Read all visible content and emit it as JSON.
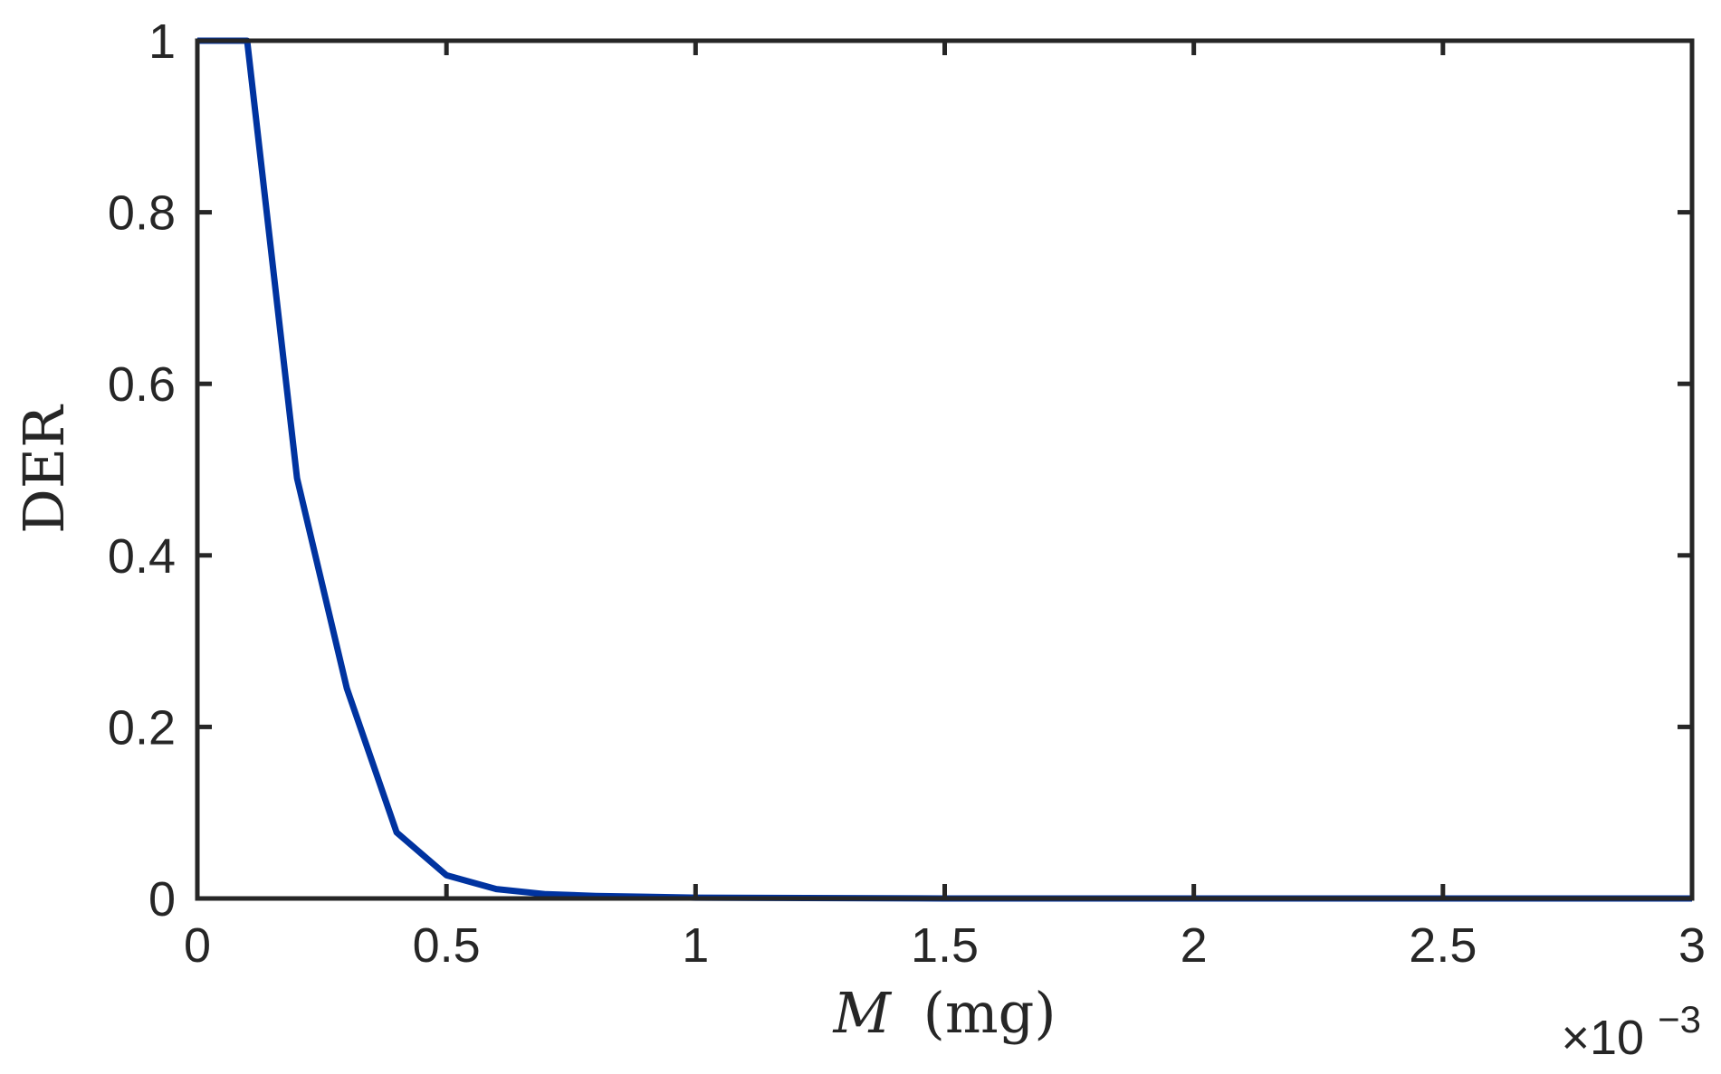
{
  "chart_data": {
    "type": "line",
    "title": "",
    "xlabel_var": "M",
    "xlabel_unit": "(mg)",
    "ylabel": "DER",
    "x_multiplier": "×10",
    "x_multiplier_exponent": "−3",
    "xlim": [
      0,
      3
    ],
    "ylim": [
      0,
      1
    ],
    "x_ticks": [
      0,
      0.5,
      1,
      1.5,
      2,
      2.5,
      3
    ],
    "x_tick_labels": [
      "0",
      "0.5",
      "1",
      "1.5",
      "2",
      "2.5",
      "3"
    ],
    "y_ticks": [
      0,
      0.2,
      0.4,
      0.6,
      0.8,
      1
    ],
    "y_tick_labels": [
      "0",
      "0.2",
      "0.4",
      "0.6",
      "0.8",
      "1"
    ],
    "grid": false,
    "series": [
      {
        "color": "#0033a0",
        "x": [
          0,
          0.1,
          0.2,
          0.3,
          0.4,
          0.5,
          0.6,
          0.7,
          0.8,
          0.9,
          1.0,
          1.5,
          2.0,
          2.5,
          3.0
        ],
        "y": [
          1.0,
          1.0,
          0.49,
          0.245,
          0.077,
          0.027,
          0.011,
          0.005,
          0.003,
          0.002,
          0.001,
          0.0,
          0.0,
          0.0,
          0.0
        ]
      }
    ]
  }
}
